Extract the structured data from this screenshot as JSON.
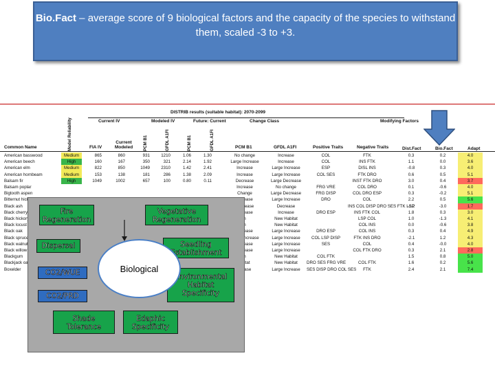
{
  "title": {
    "bold": "Bio.Fact",
    "rest": " – average score of 9 biological factors and the capacity of the species to withstand them, scaled -3 to +3."
  },
  "sheet": {
    "distrib_header": "DISTRIB results (suitable habitat): 2070-2099",
    "groups": {
      "current_iv": "Current IV",
      "modeled_iv": "Modeled IV",
      "future_current": "Future: Current",
      "change_class": "Change Class",
      "modifying_factors": "Modifying Factors"
    },
    "columns": {
      "common_name": "Common Name",
      "model_reliability": "Model Reliability",
      "fia_iv": "FIA IV",
      "current_modeled": "Current Modeled",
      "pcm_b1": "PCM B1",
      "gfdl_a1fi": "GFDL A1FI",
      "pcm_b1_2": "PCM B1",
      "gfdl_a1fi_2": "GFDL A1FI",
      "pcm_b1_change": "PCM B1",
      "gfdl_a1fi_change": "GFDL A1FI",
      "positive_traits": "Positive Traits",
      "negative_traits": "Negative Traits",
      "dist_fact": "Dist.Fact",
      "bio_fact": "Bio.Fact",
      "adapt": "Adapt"
    },
    "rows": [
      {
        "name": "American basswood",
        "rel": "Medium",
        "relc": "medium",
        "fia": "865",
        "mod": "860",
        "a": "931",
        "b": "1210",
        "c": "1.06",
        "d": "1.30",
        "pcm": "No change",
        "gfdl": "Increase",
        "pos": "COL",
        "neg": "FTK",
        "dist": "0.3",
        "bio": "0.2",
        "adapt": "4.0",
        "adc": "yellow"
      },
      {
        "name": "American beech",
        "rel": "High",
        "relc": "high",
        "fia": "160",
        "mod": "167",
        "a": "350",
        "b": "321",
        "c": "2.14",
        "d": "1.92",
        "pcm": "Large Increase",
        "gfdl": "Increase",
        "pos": "COL",
        "neg": "INS FTK",
        "dist": "1.1",
        "bio": "0.0",
        "adapt": "3.6",
        "adc": "yellow"
      },
      {
        "name": "American elm",
        "rel": "Medium",
        "relc": "medium",
        "fia": "822",
        "mod": "850",
        "a": "1049",
        "b": "2310",
        "c": "1.42",
        "d": "2.41",
        "pcm": "Increase",
        "gfdl": "Large Increase",
        "pos": "ESP",
        "neg": "DISL INS",
        "dist": "-0.8",
        "bio": "0.3",
        "adapt": "4.0",
        "adc": "yellow"
      },
      {
        "name": "American hornbeam",
        "rel": "Medium",
        "relc": "medium",
        "fia": "153",
        "mod": "138",
        "a": "181",
        "b": "286",
        "c": "1.38",
        "d": "2.09",
        "pcm": "Increase",
        "gfdl": "Large Increase",
        "pos": "COL SES",
        "neg": "FTK DRO",
        "dist": "0.6",
        "bio": "0.5",
        "adapt": "5.1",
        "adc": "yellow"
      },
      {
        "name": "Balsam fir",
        "rel": "High",
        "relc": "high",
        "fia": "1049",
        "mod": "1002",
        "a": "657",
        "b": "100",
        "c": "0.80",
        "d": "0.11",
        "pcm": "Decrease",
        "gfdl": "Large Decrease",
        "pos": "",
        "neg": "INST FTK DRO",
        "dist": "3.0",
        "bio": "0.4",
        "adapt": "3.7",
        "adc": "red"
      },
      {
        "name": "Balsam poplar",
        "rel": "",
        "relc": "none",
        "fia": "",
        "mod": "",
        "a": "",
        "b": "",
        "c": "",
        "d": "",
        "pcm": "Increase",
        "gfdl": "No change",
        "pos": "FRG VRE",
        "neg": "COL DRO",
        "dist": "0.1",
        "bio": "-0.6",
        "adapt": "4.0",
        "adc": "yellow"
      },
      {
        "name": "Bigtooth aspen",
        "rel": "",
        "relc": "none",
        "fia": "",
        "mod": "",
        "a": "",
        "b": "",
        "c": "",
        "d": "",
        "pcm": "Change",
        "gfdl": "Large Decrease",
        "pos": "FRG DISP",
        "neg": "COL DRO ESP",
        "dist": "0.3",
        "bio": "-0.2",
        "adapt": "5.1",
        "adc": "yellow"
      },
      {
        "name": "Bitternut hickory",
        "rel": "",
        "relc": "none",
        "fia": "",
        "mod": "",
        "a": "",
        "b": "",
        "c": "",
        "d": "",
        "pcm": "Increase",
        "gfdl": "Large Increase",
        "pos": "DRO",
        "neg": "COL",
        "dist": "2.2",
        "bio": "0.5",
        "adapt": "5.6",
        "adc": "green"
      },
      {
        "name": "Black ash",
        "rel": "",
        "relc": "none",
        "fia": "",
        "mod": "",
        "a": "",
        "b": "",
        "c": "",
        "d": "",
        "pcm": "Decrease",
        "gfdl": "Decrease",
        "pos": "",
        "neg": "INS COL DISP DRO SES FTK LSP",
        "dist": "-1.2",
        "bio": "-3.0",
        "adapt": "1.7",
        "adc": "red"
      },
      {
        "name": "Black cherry",
        "rel": "",
        "relc": "none",
        "fia": "",
        "mod": "",
        "a": "",
        "b": "",
        "c": "",
        "d": "",
        "pcm": "Increase",
        "gfdl": "Increase",
        "pos": "DRO ESP",
        "neg": "INS FTK COL",
        "dist": "1.8",
        "bio": "0.3",
        "adapt": "3.0",
        "adc": "yellow"
      },
      {
        "name": "Black hickory",
        "rel": "",
        "relc": "none",
        "fia": "",
        "mod": "",
        "a": "",
        "b": "",
        "c": "",
        "d": "",
        "pcm": "h",
        "gfdl": "New Habitat",
        "pos": "",
        "neg": "LSP COL",
        "dist": "1.0",
        "bio": "-1.3",
        "adapt": "4.1",
        "adc": "yellow"
      },
      {
        "name": "Black locust",
        "rel": "",
        "relc": "none",
        "fia": "",
        "mod": "",
        "a": "",
        "b": "",
        "c": "",
        "d": "",
        "pcm": "h",
        "gfdl": "New Habitat",
        "pos": "",
        "neg": "COL INS",
        "dist": "0.0",
        "bio": "-0.6",
        "adapt": "3.8",
        "adc": "yellow"
      },
      {
        "name": "Black oak",
        "rel": "",
        "relc": "none",
        "fia": "",
        "mod": "",
        "a": "",
        "b": "",
        "c": "",
        "d": "",
        "pcm": "Increase",
        "gfdl": "Large Increase",
        "pos": "DRO ESP",
        "neg": "COL INS",
        "dist": "0.3",
        "bio": "0.4",
        "adapt": "4.9",
        "adc": "yellow"
      },
      {
        "name": "Black spruce",
        "rel": "",
        "relc": "none",
        "fia": "",
        "mod": "",
        "a": "",
        "b": "",
        "c": "",
        "d": "",
        "pcm": "Large Increase",
        "gfdl": "Large Increase",
        "pos": "COL LSP DISP",
        "neg": "FTK INS DRO",
        "dist": "-2.1",
        "bio": "1.2",
        "adapt": "4.3",
        "adc": "yellow"
      },
      {
        "name": "Black walnut",
        "rel": "",
        "relc": "none",
        "fia": "",
        "mod": "",
        "a": "",
        "b": "",
        "c": "",
        "d": "",
        "pcm": "Increase",
        "gfdl": "Large Increase",
        "pos": "SES",
        "neg": "COL",
        "dist": "0.4",
        "bio": "-0.0",
        "adapt": "4.0",
        "adc": "yellow"
      },
      {
        "name": "Black willow",
        "rel": "",
        "relc": "none",
        "fia": "",
        "mod": "",
        "a": "",
        "b": "",
        "c": "",
        "d": "",
        "pcm": "Increase",
        "gfdl": "Large Increase",
        "pos": "",
        "neg": "COL FTK DRO",
        "dist": "0.3",
        "bio": "2.1",
        "adapt": "2.8",
        "adc": "red"
      },
      {
        "name": "Blackgum",
        "rel": "",
        "relc": "none",
        "fia": "",
        "mod": "",
        "a": "",
        "b": "",
        "c": "",
        "d": "",
        "pcm": "h",
        "gfdl": "New Habitat",
        "pos": "COL FTK",
        "neg": "",
        "dist": "1.5",
        "bio": "0.8",
        "adapt": "5.0",
        "adc": "green"
      },
      {
        "name": "Blackjack oak",
        "rel": "",
        "relc": "none",
        "fia": "",
        "mod": "",
        "a": "",
        "b": "",
        "c": "",
        "d": "",
        "pcm": "abitat",
        "gfdl": "New Habitat",
        "pos": "DRO SES FRG VRE",
        "neg": "COL FTK",
        "dist": "1.6",
        "bio": "0.2",
        "adapt": "5.6",
        "adc": "green"
      },
      {
        "name": "Boxelder",
        "rel": "",
        "relc": "none",
        "fia": "",
        "mod": "",
        "a": "",
        "b": "",
        "c": "",
        "d": "",
        "pcm": "crease",
        "gfdl": "Large Increase",
        "pos": "SES DISP DRO COL SES",
        "neg": "FTK",
        "dist": "2.4",
        "bio": "2.1",
        "adapt": "7.4",
        "adc": "green"
      }
    ]
  },
  "diagram": {
    "center": "Biological",
    "boxes": {
      "fire_regeneration": [
        "Fire",
        "Regeneration"
      ],
      "vegetative_regeneration": [
        "Vegetative",
        "Regeneration"
      ],
      "dispersal": [
        "Dispersal"
      ],
      "seedling_establishment": [
        "Seedling",
        "Establishment"
      ],
      "co2_wue": [
        "CO2/WUE"
      ],
      "environmental_habitat": [
        "Environmental",
        "Habitat",
        "Specificity"
      ],
      "co2_prd": [
        "CO2/PRD"
      ],
      "shade_tolerance": [
        "Shade",
        "Tolerance"
      ],
      "edaphic_specificity": [
        "Edaphic",
        "Specificity"
      ]
    }
  },
  "colors": {
    "title_bg": "#4f7fc0",
    "green_box": "#17a34a",
    "blue_box": "#2f6cc0",
    "arrow": "#4f7fc0"
  }
}
